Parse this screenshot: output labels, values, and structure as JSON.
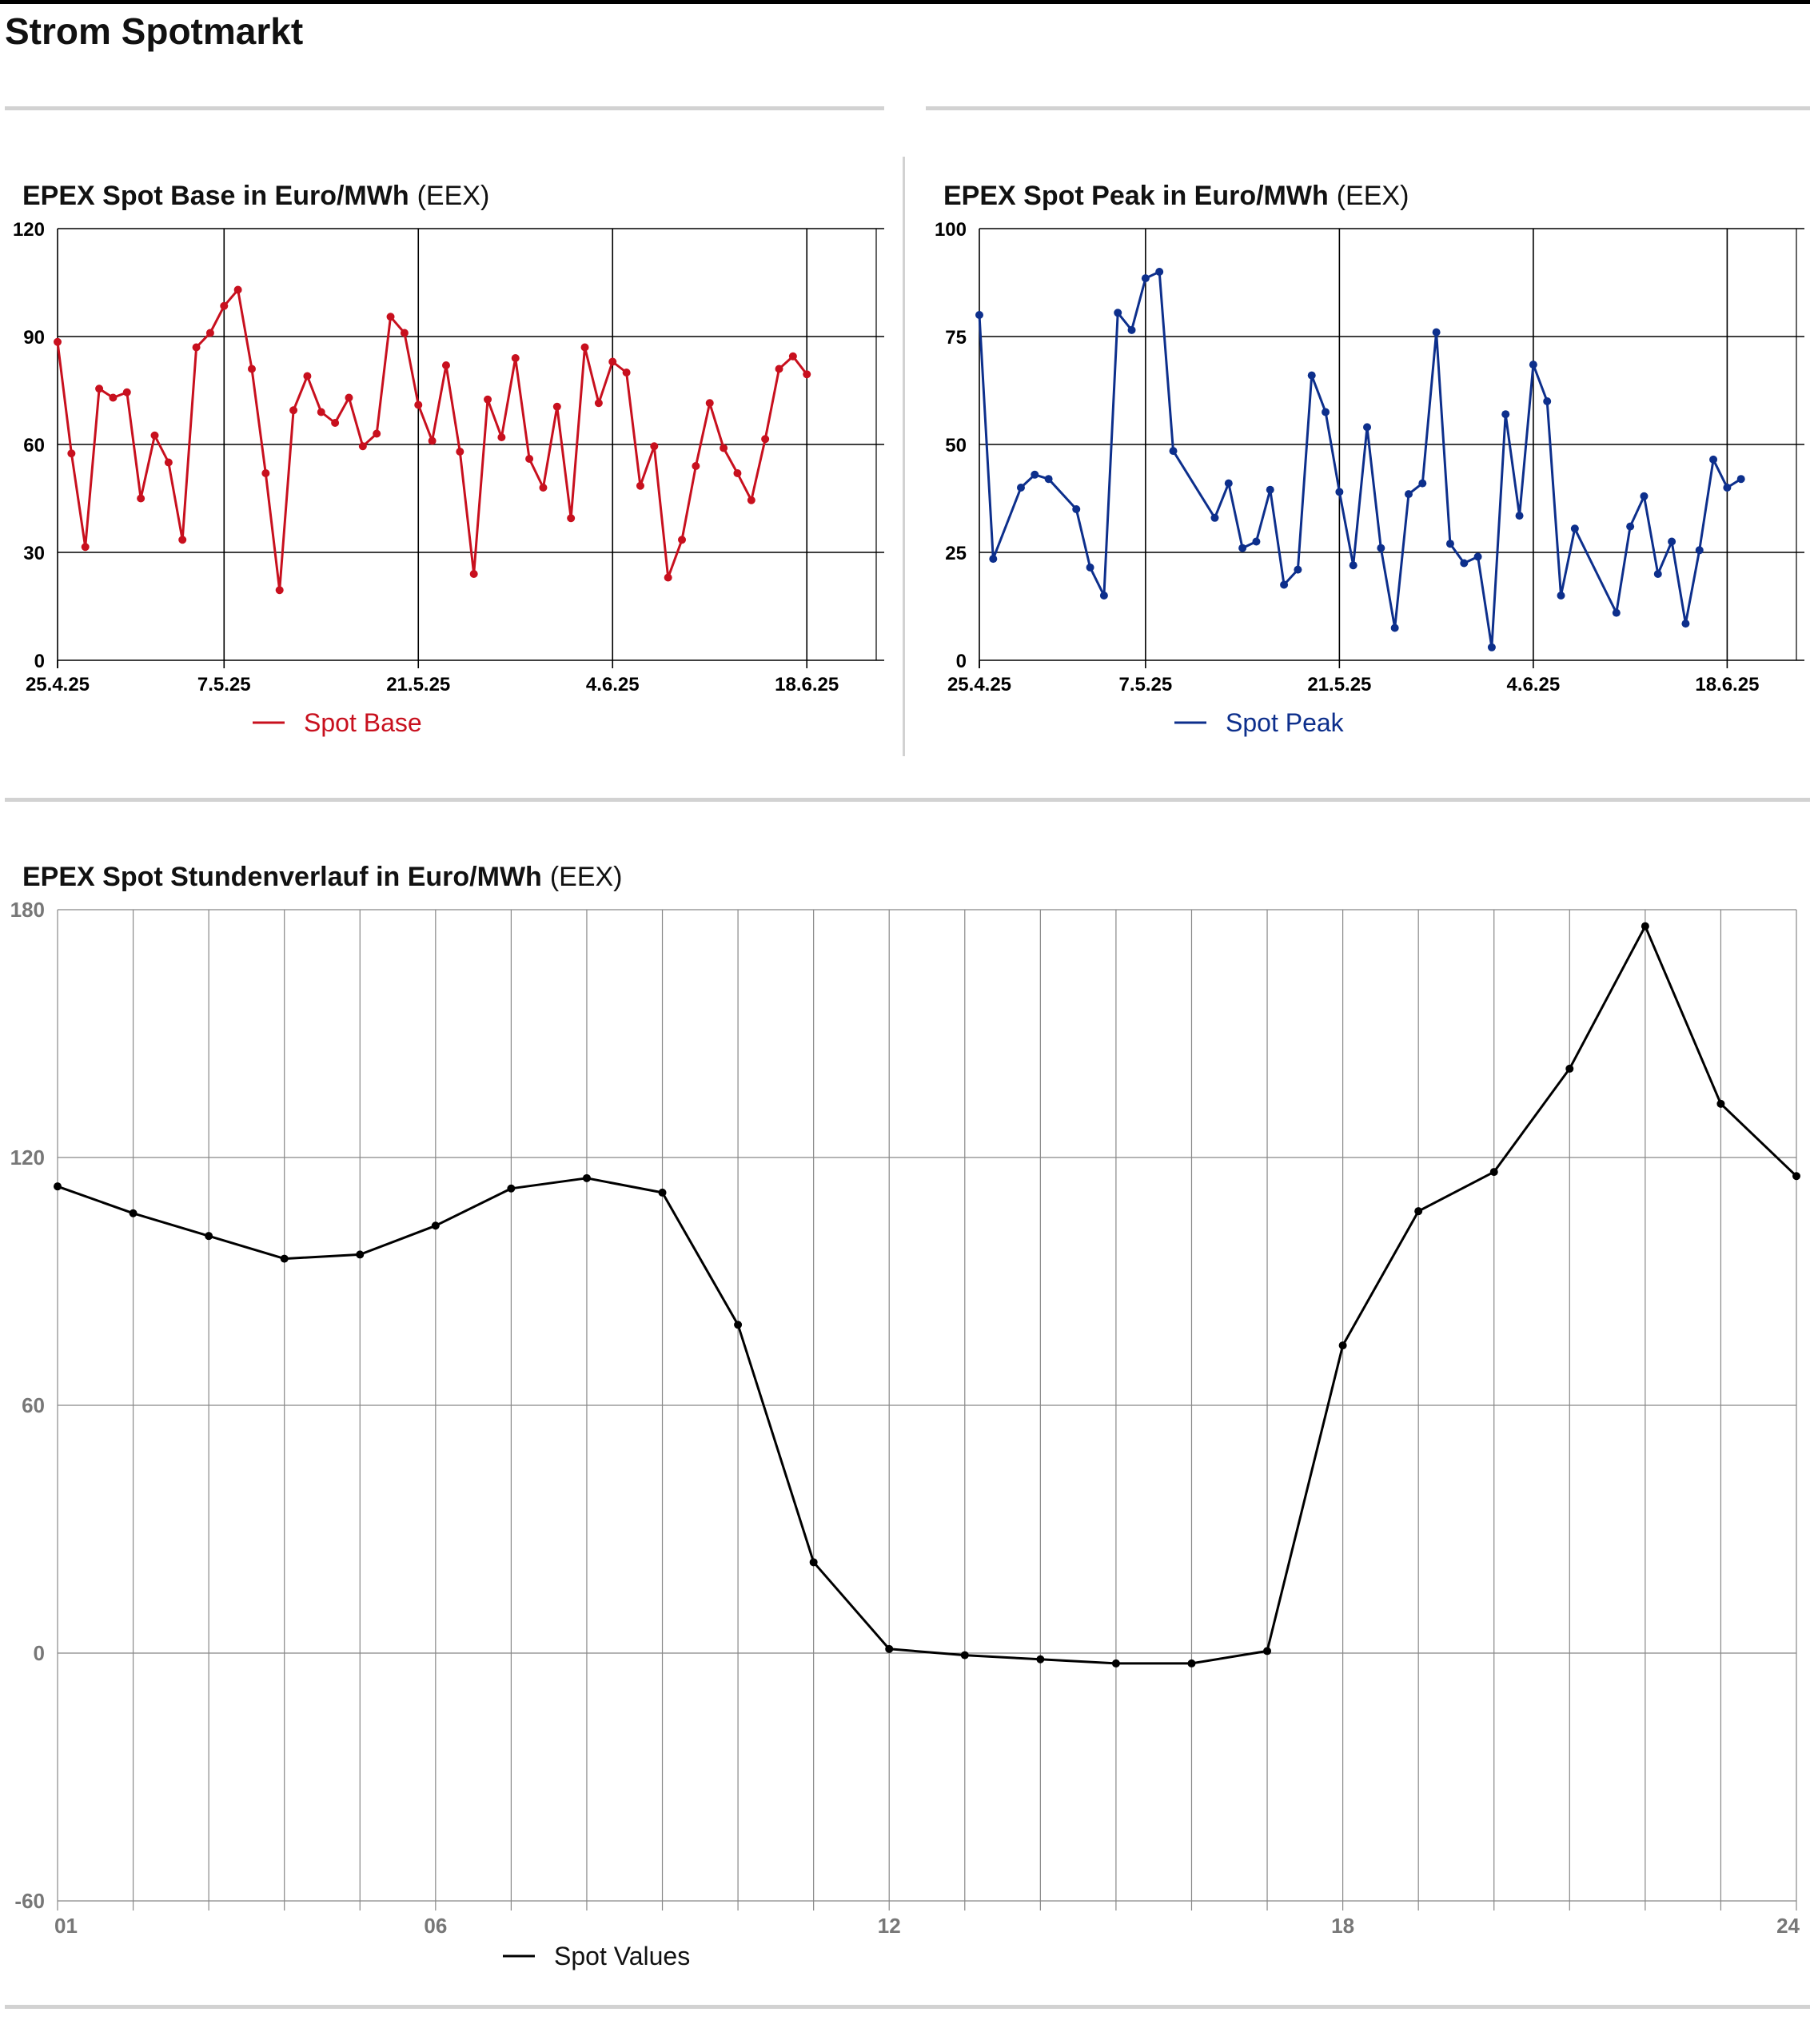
{
  "page": {
    "title": "Strom Spotmarkt"
  },
  "colors": {
    "base": "#c8101e",
    "peak": "#0d2f8c",
    "hourly": "#000000",
    "grid": "#888888",
    "rule": "#d2d2d2"
  },
  "chart_data": [
    {
      "type": "line",
      "title": "EPEX Spot Base in Euro/MWh",
      "source": "(EEX)",
      "xlabel": "",
      "ylabel": "",
      "x_range": [
        "2025-04-25",
        "2025-06-23"
      ],
      "xticks": [
        {
          "date": "2025-04-25",
          "label": "25.4.25"
        },
        {
          "date": "2025-05-07",
          "label": "7.5.25"
        },
        {
          "date": "2025-05-21",
          "label": "21.5.25"
        },
        {
          "date": "2025-06-04",
          "label": "4.6.25"
        },
        {
          "date": "2025-06-18",
          "label": "18.6.25"
        }
      ],
      "ylim": [
        0,
        120
      ],
      "yticks": [
        0,
        30,
        60,
        90,
        120
      ],
      "grid": true,
      "legend_position": "bottom-center",
      "series": [
        {
          "name": "Spot Base",
          "points": [
            [
              "2025-04-25",
              88.5
            ],
            [
              "2025-04-26",
              57.5
            ],
            [
              "2025-04-27",
              31.5
            ],
            [
              "2025-04-28",
              75.5
            ],
            [
              "2025-04-29",
              73
            ],
            [
              "2025-04-30",
              74.5
            ],
            [
              "2025-05-01",
              45
            ],
            [
              "2025-05-02",
              62.5
            ],
            [
              "2025-05-03",
              55
            ],
            [
              "2025-05-04",
              33.5
            ],
            [
              "2025-05-05",
              87
            ],
            [
              "2025-05-06",
              91
            ],
            [
              "2025-05-07",
              98.5
            ],
            [
              "2025-05-08",
              103
            ],
            [
              "2025-05-09",
              81
            ],
            [
              "2025-05-10",
              52
            ],
            [
              "2025-05-11",
              19.5
            ],
            [
              "2025-05-12",
              69.5
            ],
            [
              "2025-05-13",
              79
            ],
            [
              "2025-05-14",
              69
            ],
            [
              "2025-05-15",
              66
            ],
            [
              "2025-05-16",
              73
            ],
            [
              "2025-05-17",
              59.5
            ],
            [
              "2025-05-18",
              63
            ],
            [
              "2025-05-19",
              95.5
            ],
            [
              "2025-05-20",
              91
            ],
            [
              "2025-05-21",
              71
            ],
            [
              "2025-05-22",
              61
            ],
            [
              "2025-05-23",
              82
            ],
            [
              "2025-05-24",
              58
            ],
            [
              "2025-05-25",
              24
            ],
            [
              "2025-05-26",
              72.5
            ],
            [
              "2025-05-27",
              62
            ],
            [
              "2025-05-28",
              84
            ],
            [
              "2025-05-29",
              56
            ],
            [
              "2025-05-30",
              48
            ],
            [
              "2025-05-31",
              70.5
            ],
            [
              "2025-06-01",
              39.5
            ],
            [
              "2025-06-02",
              87
            ],
            [
              "2025-06-03",
              71.5
            ],
            [
              "2025-06-04",
              83
            ],
            [
              "2025-06-05",
              80
            ],
            [
              "2025-06-06",
              48.5
            ],
            [
              "2025-06-07",
              59.5
            ],
            [
              "2025-06-08",
              23
            ],
            [
              "2025-06-09",
              33.5
            ],
            [
              "2025-06-10",
              54
            ],
            [
              "2025-06-11",
              71.5
            ],
            [
              "2025-06-12",
              59
            ],
            [
              "2025-06-13",
              52
            ],
            [
              "2025-06-14",
              44.5
            ],
            [
              "2025-06-15",
              61.5
            ],
            [
              "2025-06-16",
              81
            ],
            [
              "2025-06-17",
              84.5
            ],
            [
              "2025-06-18",
              79.5
            ]
          ]
        }
      ]
    },
    {
      "type": "line",
      "title": "EPEX Spot Peak in Euro/MWh",
      "source": "(EEX)",
      "xlabel": "",
      "ylabel": "",
      "x_range": [
        "2025-04-25",
        "2025-06-23"
      ],
      "xticks": [
        {
          "date": "2025-04-25",
          "label": "25.4.25"
        },
        {
          "date": "2025-05-07",
          "label": "7.5.25"
        },
        {
          "date": "2025-05-21",
          "label": "21.5.25"
        },
        {
          "date": "2025-06-04",
          "label": "4.6.25"
        },
        {
          "date": "2025-06-18",
          "label": "18.6.25"
        }
      ],
      "ylim": [
        0,
        100
      ],
      "yticks": [
        0,
        25,
        50,
        75,
        100
      ],
      "grid": true,
      "legend_position": "bottom-center",
      "series": [
        {
          "name": "Spot Peak",
          "points": [
            [
              "2025-04-25",
              80
            ],
            [
              "2025-04-26",
              23.5
            ],
            [
              "2025-04-28",
              40
            ],
            [
              "2025-04-29",
              43
            ],
            [
              "2025-04-30",
              42
            ],
            [
              "2025-05-02",
              35
            ],
            [
              "2025-05-03",
              21.5
            ],
            [
              "2025-05-04",
              15
            ],
            [
              "2025-05-05",
              80.5
            ],
            [
              "2025-05-06",
              76.5
            ],
            [
              "2025-05-07",
              88.5
            ],
            [
              "2025-05-08",
              90
            ],
            [
              "2025-05-09",
              48.5
            ],
            [
              "2025-05-12",
              33
            ],
            [
              "2025-05-13",
              41
            ],
            [
              "2025-05-14",
              26
            ],
            [
              "2025-05-15",
              27.5
            ],
            [
              "2025-05-16",
              39.5
            ],
            [
              "2025-05-17",
              17.5
            ],
            [
              "2025-05-18",
              21
            ],
            [
              "2025-05-19",
              66
            ],
            [
              "2025-05-20",
              57.5
            ],
            [
              "2025-05-21",
              39
            ],
            [
              "2025-05-22",
              22
            ],
            [
              "2025-05-23",
              54
            ],
            [
              "2025-05-24",
              26
            ],
            [
              "2025-05-25",
              7.5
            ],
            [
              "2025-05-26",
              38.5
            ],
            [
              "2025-05-27",
              41
            ],
            [
              "2025-05-28",
              76
            ],
            [
              "2025-05-29",
              27
            ],
            [
              "2025-05-30",
              22.5
            ],
            [
              "2025-05-31",
              24
            ],
            [
              "2025-06-01",
              3
            ],
            [
              "2025-06-02",
              57
            ],
            [
              "2025-06-03",
              33.5
            ],
            [
              "2025-06-04",
              68.5
            ],
            [
              "2025-06-05",
              60
            ],
            [
              "2025-06-06",
              15
            ],
            [
              "2025-06-07",
              30.5
            ],
            [
              "2025-06-10",
              11
            ],
            [
              "2025-06-11",
              31
            ],
            [
              "2025-06-12",
              38
            ],
            [
              "2025-06-13",
              20
            ],
            [
              "2025-06-14",
              27.5
            ],
            [
              "2025-06-15",
              8.5
            ],
            [
              "2025-06-16",
              25.5
            ],
            [
              "2025-06-17",
              46.5
            ],
            [
              "2025-06-18",
              40
            ],
            [
              "2025-06-19",
              42
            ]
          ]
        }
      ]
    },
    {
      "type": "line",
      "title": "EPEX Spot Stundenverlauf in Euro/MWh",
      "source": "(EEX)",
      "xlabel": "",
      "ylabel": "",
      "xlim": [
        1,
        24
      ],
      "xticks": [
        {
          "value": 1,
          "label": "01"
        },
        {
          "value": 6,
          "label": "06"
        },
        {
          "value": 12,
          "label": "12"
        },
        {
          "value": 18,
          "label": "18"
        },
        {
          "value": 24,
          "label": "24"
        }
      ],
      "ylim": [
        -60,
        180
      ],
      "yticks": [
        -60,
        0,
        60,
        120,
        180
      ],
      "grid": true,
      "legend_position": "bottom-center",
      "series": [
        {
          "name": "Spot Values",
          "x": [
            1,
            2,
            3,
            4,
            5,
            6,
            7,
            8,
            9,
            10,
            11,
            12,
            13,
            14,
            15,
            16,
            17,
            18,
            19,
            20,
            21,
            22,
            23,
            24
          ],
          "y": [
            113,
            106.5,
            101,
            95.5,
            96.5,
            103.5,
            112.5,
            115,
            111.5,
            79.5,
            22,
            1,
            -0.5,
            -1.5,
            -2.5,
            -2.5,
            0.5,
            74.5,
            107,
            116.5,
            141.5,
            176,
            133,
            115.5
          ]
        }
      ]
    }
  ]
}
